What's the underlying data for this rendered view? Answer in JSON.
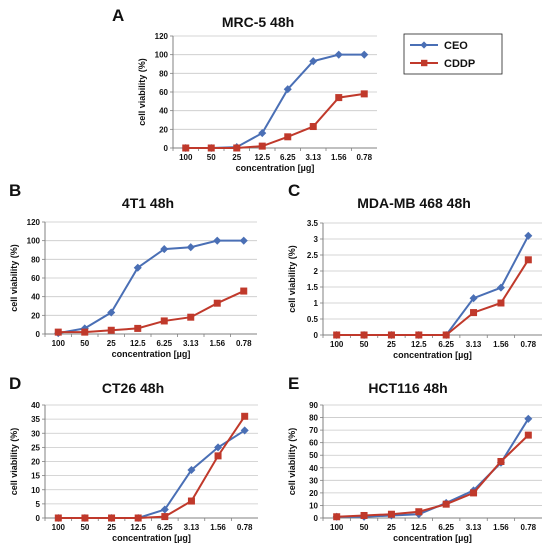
{
  "colors": {
    "ceo": "#4a6fb5",
    "cddp": "#c0392b",
    "axis": "#808080",
    "grid": "#c8c8c8"
  },
  "legend": {
    "items": [
      {
        "label": "CEO",
        "color": "#4a6fb5",
        "marker": "diamond"
      },
      {
        "label": "CDDP",
        "color": "#c0392b",
        "marker": "square"
      }
    ]
  },
  "chart_data": [
    {
      "type": "line",
      "panel": "A",
      "title": "MRC-5 48h",
      "xlabel": "concentration [µg]",
      "ylabel": "cell viability (%)",
      "categories": [
        "100",
        "50",
        "25",
        "12.5",
        "6.25",
        "3.13",
        "1.56",
        "0.78"
      ],
      "ylim": [
        0,
        120
      ],
      "yticks": [
        0,
        20,
        40,
        60,
        80,
        100,
        120
      ],
      "grid": true,
      "series": [
        {
          "name": "CEO",
          "values": [
            0,
            0,
            1,
            16,
            63,
            93,
            100,
            100
          ]
        },
        {
          "name": "CDDP",
          "values": [
            0,
            0,
            0,
            2,
            12,
            23,
            54,
            58
          ]
        }
      ]
    },
    {
      "type": "line",
      "panel": "B",
      "title": "4T1 48h",
      "xlabel": "concentration [µg]",
      "ylabel": "cell viability (%)",
      "categories": [
        "100",
        "50",
        "25",
        "12.5",
        "6.25",
        "3.13",
        "1.56",
        "0.78"
      ],
      "ylim": [
        0,
        120
      ],
      "yticks": [
        0,
        20,
        40,
        60,
        80,
        100,
        120
      ],
      "grid": true,
      "series": [
        {
          "name": "CEO",
          "values": [
            1,
            6,
            23,
            71,
            91,
            93,
            100,
            100
          ]
        },
        {
          "name": "CDDP",
          "values": [
            2,
            2,
            4,
            6,
            14,
            18,
            33,
            46
          ]
        }
      ]
    },
    {
      "type": "line",
      "panel": "C",
      "title": "MDA-MB 468 48h",
      "xlabel": "concentration [µg]",
      "ylabel": "cell viability (%)",
      "categories": [
        "100",
        "50",
        "25",
        "12.5",
        "6.25",
        "3.13",
        "1.56",
        "0.78"
      ],
      "ylim": [
        0,
        3.5
      ],
      "yticks": [
        0,
        0.5,
        1,
        1.5,
        2,
        2.5,
        3,
        3.5
      ],
      "grid": true,
      "series": [
        {
          "name": "CEO",
          "values": [
            0,
            0,
            0,
            0,
            0,
            1.15,
            1.48,
            3.1
          ]
        },
        {
          "name": "CDDP",
          "values": [
            0,
            0,
            0,
            0,
            0,
            0.7,
            1.0,
            2.35
          ]
        }
      ]
    },
    {
      "type": "line",
      "panel": "D",
      "title": "CT26 48h",
      "xlabel": "concentration [µg]",
      "ylabel": "cell viability (%)",
      "categories": [
        "100",
        "50",
        "25",
        "12.5",
        "6.25",
        "3.13",
        "1.56",
        "0.78"
      ],
      "ylim": [
        0,
        40
      ],
      "yticks": [
        0,
        5,
        10,
        15,
        20,
        25,
        30,
        35,
        40
      ],
      "grid": true,
      "series": [
        {
          "name": "CEO",
          "values": [
            0,
            0,
            0,
            0,
            3,
            17,
            25,
            31
          ]
        },
        {
          "name": "CDDP",
          "values": [
            0,
            0,
            0,
            0,
            0.5,
            6,
            22,
            36
          ]
        }
      ]
    },
    {
      "type": "line",
      "panel": "E",
      "title": "HCT116 48h",
      "xlabel": "concentration [µg]",
      "ylabel": "cell viability (%)",
      "categories": [
        "100",
        "50",
        "25",
        "12.5",
        "6.25",
        "3.13",
        "1.56",
        "0.78"
      ],
      "ylim": [
        0,
        90
      ],
      "yticks": [
        0,
        10,
        20,
        30,
        40,
        50,
        60,
        70,
        80,
        90
      ],
      "grid": true,
      "series": [
        {
          "name": "CEO",
          "values": [
            1,
            1,
            2,
            3,
            12,
            22,
            44,
            79
          ]
        },
        {
          "name": "CDDP",
          "values": [
            1,
            2,
            3,
            5,
            11,
            20,
            45,
            66
          ]
        }
      ]
    }
  ]
}
